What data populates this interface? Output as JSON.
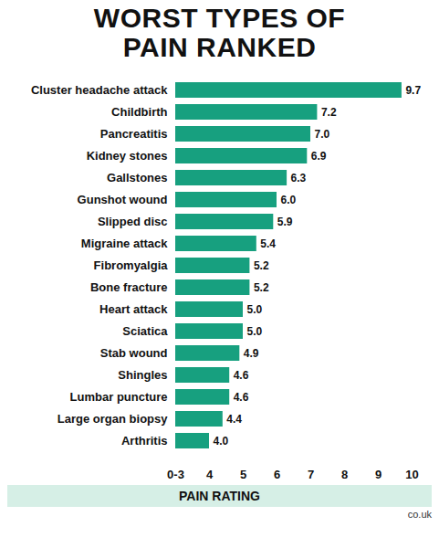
{
  "chart_data": {
    "type": "bar",
    "title": "WORST TYPES OF PAIN RANKED",
    "xlabel": "PAIN RATING",
    "source": "co.uk",
    "orientation": "horizontal",
    "categories": [
      "Cluster headache attack",
      "Childbirth",
      "Pancreatitis",
      "Kidney stones",
      "Gallstones",
      "Gunshot wound",
      "Slipped disc",
      "Migraine attack",
      "Fibromyalgia",
      "Bone fracture",
      "Heart attack",
      "Sciatica",
      "Stab wound",
      "Shingles",
      "Lumbar puncture",
      "Large organ biopsy",
      "Arthritis"
    ],
    "values": [
      9.7,
      7.2,
      7.0,
      6.9,
      6.3,
      6.0,
      5.9,
      5.4,
      5.2,
      5.2,
      5.0,
      5.0,
      4.9,
      4.6,
      4.6,
      4.4,
      4.0
    ],
    "value_labels": [
      "9.7",
      "7.2",
      "7.0",
      "6.9",
      "6.3",
      "6.0",
      "5.9",
      "5.4",
      "5.2",
      "5.2",
      "5.0",
      "5.0",
      "4.9",
      "4.6",
      "4.6",
      "4.4",
      "4.0"
    ],
    "data_labels": true,
    "color": "#17a07f",
    "xlim": [
      3,
      10
    ],
    "xticks": [
      {
        "value": 3,
        "label": "0-3"
      },
      4,
      5,
      6,
      7,
      8,
      9,
      10
    ],
    "grid": false
  }
}
